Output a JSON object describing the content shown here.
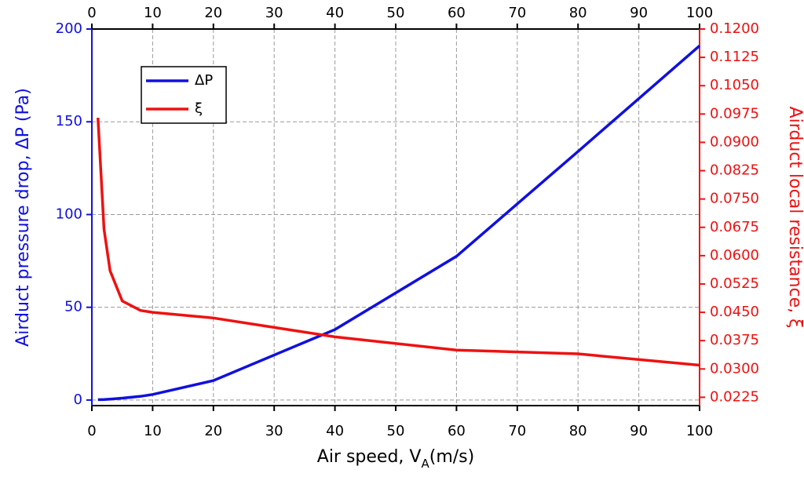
{
  "chart_data": {
    "type": "line",
    "x_label": {
      "text": "Air speed, V",
      "subscript": "A",
      "suffix": "(m/s)"
    },
    "y_label": "Airduct pressure drop, ΔP (Pa)",
    "y2_label": "Airduct local resistance, ξ",
    "x": [
      1,
      2,
      3,
      5,
      8,
      10,
      20,
      40,
      60,
      80,
      100
    ],
    "series": [
      {
        "name": "ΔP",
        "color": "#1010e0",
        "values": [
          0.2,
          0.3,
          0.5,
          1,
          2,
          3,
          10.5,
          38,
          77.5,
          134,
          191
        ]
      },
      {
        "name": "ξ",
        "color": "#ee1111",
        "axis": "y2",
        "values": [
          0.0965,
          0.067,
          0.056,
          0.048,
          0.0455,
          0.045,
          0.0435,
          0.0385,
          0.035,
          0.034,
          0.031
        ]
      }
    ],
    "xlim": [
      0,
      100
    ],
    "xticks": [
      0,
      10,
      20,
      30,
      40,
      50,
      60,
      70,
      80,
      90,
      100
    ],
    "ylim": [
      -3,
      200
    ],
    "yticks": [
      0,
      50,
      100,
      150,
      200
    ],
    "y2lim": [
      0.0203,
      0.12
    ],
    "y2ticks": [
      {
        "value": 0.0225,
        "label": "0.0225"
      },
      {
        "value": 0.03,
        "label": "0.0300"
      },
      {
        "value": 0.0375,
        "label": "0.0375"
      },
      {
        "value": 0.045,
        "label": "0.0450"
      },
      {
        "value": 0.0525,
        "label": "0.0525"
      },
      {
        "value": 0.06,
        "label": "0.0600"
      },
      {
        "value": 0.0675,
        "label": "0.0675"
      },
      {
        "value": 0.075,
        "label": "0.0750"
      },
      {
        "value": 0.0825,
        "label": "0.0825"
      },
      {
        "value": 0.09,
        "label": "0.0900"
      },
      {
        "value": 0.0975,
        "label": "0.0975"
      },
      {
        "value": 0.105,
        "label": "0.1050"
      },
      {
        "value": 0.1125,
        "label": "0.1125"
      },
      {
        "value": 0.12,
        "label": "0.1200"
      }
    ],
    "grid": true
  }
}
